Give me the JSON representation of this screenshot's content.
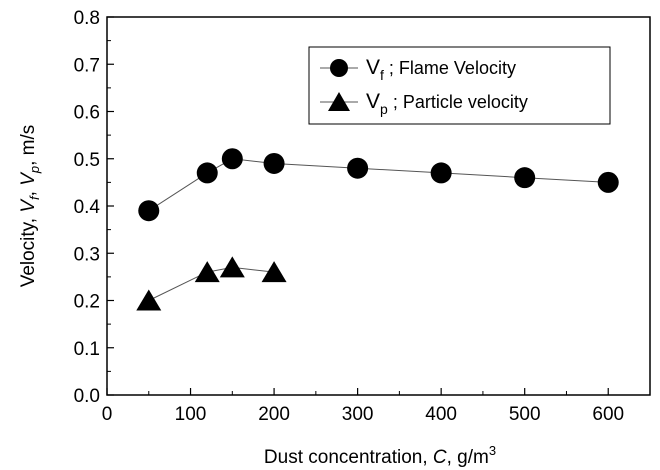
{
  "chart_data": {
    "type": "line",
    "xlabel_parts": {
      "prefix": "Dust concentration, ",
      "var": "C",
      "mid": ", g/m",
      "sup": "3"
    },
    "ylabel_parts": {
      "prefix": "Velocity, ",
      "v1": "V",
      "s1": "f",
      "comma1": ", ",
      "v2": "V",
      "s2": "p",
      "suffix": ", m/s"
    },
    "xlim": [
      0,
      650
    ],
    "ylim": [
      0.0,
      0.8
    ],
    "xticks": [
      0,
      100,
      200,
      300,
      400,
      500,
      600
    ],
    "yticks": [
      "0.0",
      "0.1",
      "0.2",
      "0.3",
      "0.4",
      "0.5",
      "0.6",
      "0.7",
      "0.8"
    ],
    "grid": false,
    "legend_position": "top-right",
    "series": [
      {
        "marker": "circle",
        "legend": {
          "sym": "V",
          "sub": "f",
          "desc": " ; Flame Velocity"
        },
        "x": [
          50,
          120,
          150,
          200,
          300,
          400,
          500,
          600
        ],
        "y": [
          0.39,
          0.47,
          0.5,
          0.49,
          0.48,
          0.47,
          0.46,
          0.45
        ]
      },
      {
        "marker": "triangle",
        "legend": {
          "sym": "V",
          "sub": "p",
          "desc": " ; Particle velocity"
        },
        "x": [
          50,
          120,
          150,
          200
        ],
        "y": [
          0.2,
          0.26,
          0.27,
          0.26
        ]
      }
    ]
  }
}
